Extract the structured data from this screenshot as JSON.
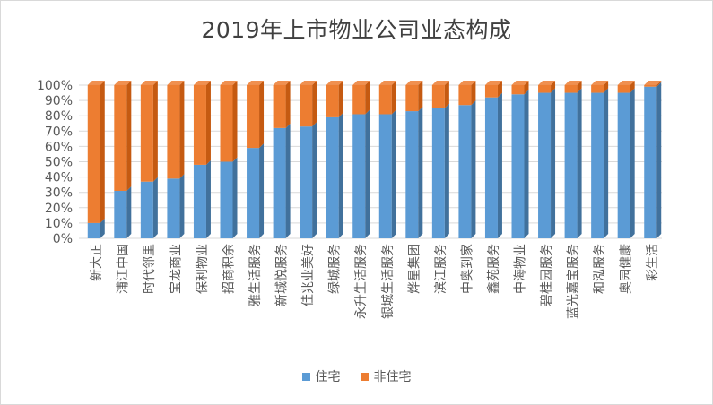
{
  "chart_data": {
    "type": "bar",
    "stacked": true,
    "percent_stacked": true,
    "title": "2019年上市物业公司业态构成",
    "xlabel": "",
    "ylabel": "",
    "ylim": [
      0,
      100
    ],
    "yticks": [
      "0%",
      "10%",
      "20%",
      "30%",
      "40%",
      "50%",
      "60%",
      "70%",
      "80%",
      "90%",
      "100%"
    ],
    "legend_position": "bottom",
    "categories": [
      "新大正",
      "浦江中国",
      "时代邻里",
      "宝龙商业",
      "保利物业",
      "招商积余",
      "雅生活服务",
      "新城悦服务",
      "佳兆业美好",
      "绿城服务",
      "永升生活服务",
      "银城生活服务",
      "烨星集团",
      "滨江服务",
      "中奥到家",
      "鑫苑服务",
      "中海物业",
      "碧桂园服务",
      "蓝光嘉宝服务",
      "和泓服务",
      "奥园健康",
      "彩生活"
    ],
    "series": [
      {
        "name": "住宅",
        "color": "#5b9bd5",
        "side_color": "#41719c",
        "values": [
          10,
          31,
          37,
          39,
          48,
          50,
          59,
          72,
          73,
          79,
          81,
          81,
          83,
          85,
          87,
          92,
          94,
          95,
          95,
          95,
          95,
          99
        ]
      },
      {
        "name": "非住宅",
        "color": "#ed7d31",
        "side_color": "#c55a11",
        "values": [
          90,
          69,
          63,
          61,
          52,
          50,
          41,
          28,
          27,
          21,
          19,
          19,
          17,
          15,
          13,
          8,
          6,
          5,
          5,
          5,
          5,
          1
        ]
      }
    ]
  }
}
